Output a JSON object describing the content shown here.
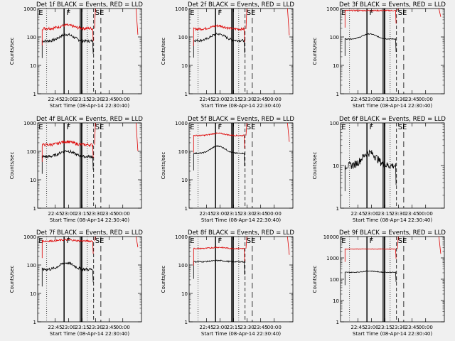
{
  "figure": {
    "background": "#f0f0f0",
    "events_color": "#000000",
    "lld_color": "#dd0000",
    "x_tick_labels": [
      "22:45",
      "23:00",
      "23:15",
      "23:30",
      "23:45",
      "00:00"
    ],
    "x_label": "Start Time (08-Apr-14 22:30:40)",
    "y_label": "Counts/sec",
    "marker_labels": [
      "E",
      "F",
      "SE"
    ]
  },
  "chart_data": [
    {
      "type": "line",
      "title": "Det 1f BLACK = Events, RED = LLD",
      "ylabel": "Counts/sec",
      "xlabel": "Start Time (08-Apr-14 22:30:40)",
      "x_range_min": [
        -5,
        110
      ],
      "yscale": "log",
      "ylim": [
        1,
        1000
      ],
      "y_tick_labels": [
        "1",
        "10",
        "100",
        "1000"
      ],
      "series": [
        {
          "name": "Events",
          "color": "#000000",
          "base": 72,
          "peak": 1.7,
          "noise": 0.12
        },
        {
          "name": "LLD",
          "color": "#dd0000",
          "base": 200,
          "peak": 1.3,
          "noise": 0.12
        }
      ]
    },
    {
      "type": "line",
      "title": "Det 2f BLACK = Events, RED = LLD",
      "ylabel": "Counts/sec",
      "xlabel": "Start Time (08-Apr-14 22:30:40)",
      "x_range_min": [
        -5,
        110
      ],
      "yscale": "log",
      "ylim": [
        1,
        1000
      ],
      "y_tick_labels": [
        "1",
        "10",
        "100",
        "1000"
      ],
      "series": [
        {
          "name": "Events",
          "color": "#000000",
          "base": 75,
          "peak": 1.7,
          "noise": 0.1
        },
        {
          "name": "LLD",
          "color": "#dd0000",
          "base": 190,
          "peak": 1.3,
          "noise": 0.1
        }
      ]
    },
    {
      "type": "line",
      "title": "Det 3f BLACK = Events, RED = LLD",
      "ylabel": "Counts/sec",
      "xlabel": "Start Time (08-Apr-14 22:30:40)",
      "x_range_min": [
        -5,
        110
      ],
      "yscale": "log",
      "ylim": [
        1,
        1000
      ],
      "y_tick_labels": [
        "1",
        "10",
        "100",
        "1000"
      ],
      "series": [
        {
          "name": "Events",
          "color": "#000000",
          "base": 85,
          "peak": 1.5,
          "noise": 0.04
        },
        {
          "name": "LLD",
          "color": "#dd0000",
          "base": 850,
          "peak": 1.0,
          "noise": 0.05
        }
      ]
    },
    {
      "type": "line",
      "title": "Det 4f BLACK = Events, RED = LLD",
      "ylabel": "Counts/sec",
      "xlabel": "Start Time (08-Apr-14 22:30:40)",
      "x_range_min": [
        -5,
        110
      ],
      "yscale": "log",
      "ylim": [
        1,
        1000
      ],
      "y_tick_labels": [
        "1",
        "10",
        "100",
        "1000"
      ],
      "series": [
        {
          "name": "Events",
          "color": "#000000",
          "base": 65,
          "peak": 1.6,
          "noise": 0.12
        },
        {
          "name": "LLD",
          "color": "#dd0000",
          "base": 170,
          "peak": 1.3,
          "noise": 0.12
        }
      ]
    },
    {
      "type": "line",
      "title": "Det 5f BLACK = Events, RED = LLD",
      "ylabel": "Counts/sec",
      "xlabel": "Start Time (08-Apr-14 22:30:40)",
      "x_range_min": [
        -5,
        110
      ],
      "yscale": "log",
      "ylim": [
        1,
        1000
      ],
      "y_tick_labels": [
        "1",
        "10",
        "100",
        "1000"
      ],
      "series": [
        {
          "name": "Events",
          "color": "#000000",
          "base": 85,
          "peak": 1.8,
          "noise": 0.05
        },
        {
          "name": "LLD",
          "color": "#dd0000",
          "base": 360,
          "peak": 1.2,
          "noise": 0.05
        }
      ]
    },
    {
      "type": "line",
      "title": "Det 6f BLACK = Events, RED = LLD",
      "ylabel": "Counts/sec",
      "xlabel": "Start Time (08-Apr-14 22:30:40)",
      "x_range_min": [
        -5,
        110
      ],
      "yscale": "log",
      "ylim": [
        1,
        100
      ],
      "y_tick_labels": [
        "1",
        "10",
        "100"
      ],
      "series": [
        {
          "name": "Events",
          "color": "#000000",
          "base": 10,
          "peak": 2.0,
          "noise": 0.2
        }
      ]
    },
    {
      "type": "line",
      "title": "Det 7f BLACK = Events, RED = LLD",
      "ylabel": "Counts/sec",
      "xlabel": "Start Time (08-Apr-14 22:30:40)",
      "x_range_min": [
        -5,
        110
      ],
      "yscale": "log",
      "ylim": [
        1,
        1000
      ],
      "y_tick_labels": [
        "1",
        "10",
        "100",
        "1000"
      ],
      "series": [
        {
          "name": "Events",
          "color": "#000000",
          "base": 70,
          "peak": 1.7,
          "noise": 0.12
        },
        {
          "name": "LLD",
          "color": "#dd0000",
          "base": 700,
          "peak": 1.1,
          "noise": 0.07
        }
      ]
    },
    {
      "type": "line",
      "title": "Det 8f BLACK = Events, RED = LLD",
      "ylabel": "Counts/sec",
      "xlabel": "Start Time (08-Apr-14 22:30:40)",
      "x_range_min": [
        -5,
        110
      ],
      "yscale": "log",
      "ylim": [
        1,
        1000
      ],
      "y_tick_labels": [
        "1",
        "10",
        "100",
        "1000"
      ],
      "series": [
        {
          "name": "Events",
          "color": "#000000",
          "base": 130,
          "peak": 1.1,
          "noise": 0.05
        },
        {
          "name": "LLD",
          "color": "#dd0000",
          "base": 380,
          "peak": 1.1,
          "noise": 0.05
        }
      ]
    },
    {
      "type": "line",
      "title": "Det 9f BLACK = Events, RED = LLD",
      "ylabel": "Counts/sec",
      "xlabel": "Start Time (08-Apr-14 22:30:40)",
      "x_range_min": [
        -5,
        110
      ],
      "yscale": "log",
      "ylim": [
        1,
        10000
      ],
      "y_tick_labels": [
        "1",
        "10",
        "100",
        "1000",
        "10000"
      ],
      "series": [
        {
          "name": "Events",
          "color": "#000000",
          "base": 210,
          "peak": 1.15,
          "noise": 0.04
        },
        {
          "name": "LLD",
          "color": "#dd0000",
          "base": 2600,
          "peak": 1.0,
          "noise": 0.03
        }
      ]
    }
  ]
}
